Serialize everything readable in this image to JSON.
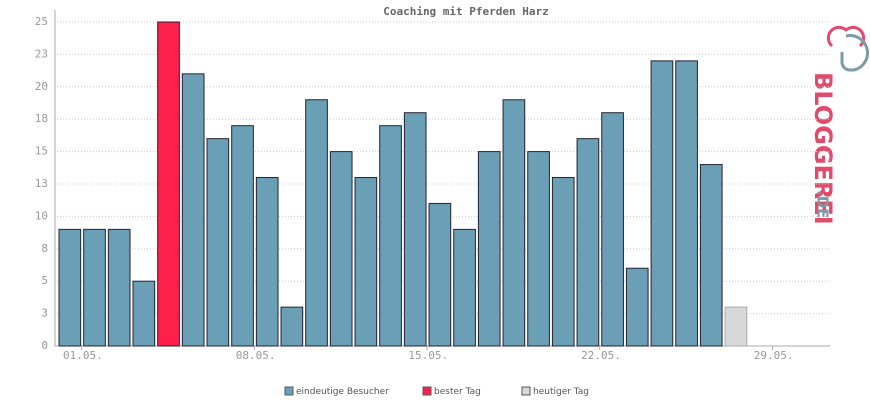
{
  "chart_data": {
    "type": "bar",
    "title": "Coaching mit Pferden Harz",
    "categories": [
      "01.05.",
      null,
      null,
      null,
      null,
      null,
      null,
      "08.05.",
      null,
      null,
      null,
      null,
      null,
      null,
      "15.05.",
      null,
      null,
      null,
      null,
      null,
      null,
      "22.05.",
      null,
      null,
      null,
      null,
      null,
      null,
      "29.05.",
      null,
      null
    ],
    "series": [
      {
        "name": "eindeutige Besucher",
        "color": "#6a9fb5",
        "values": [
          9,
          9,
          9,
          5,
          null,
          21,
          16,
          17,
          13,
          3,
          19,
          15,
          13,
          17,
          18,
          11,
          9,
          15,
          19,
          15,
          13,
          16,
          18,
          6,
          22,
          22,
          14,
          null,
          null,
          null,
          null
        ]
      },
      {
        "name": "bester Tag",
        "color": "#ff1f4b",
        "values": [
          null,
          null,
          null,
          null,
          25,
          null,
          null,
          null,
          null,
          null,
          null,
          null,
          null,
          null,
          null,
          null,
          null,
          null,
          null,
          null,
          null,
          null,
          null,
          null,
          null,
          null,
          null,
          null,
          null,
          null,
          null
        ]
      },
      {
        "name": "heutiger Tag",
        "color": "#d8d8d8",
        "values": [
          null,
          null,
          null,
          null,
          null,
          null,
          null,
          null,
          null,
          null,
          null,
          null,
          null,
          null,
          null,
          null,
          null,
          null,
          null,
          null,
          null,
          null,
          null,
          null,
          null,
          null,
          null,
          3,
          null,
          null,
          null
        ]
      }
    ],
    "ylim": [
      0,
      25
    ],
    "yticks": [
      0,
      {
        "value": 2.5,
        "label": "3"
      },
      5,
      {
        "value": 7.5,
        "label": "8"
      },
      10,
      {
        "value": 12.5,
        "label": "13"
      },
      15,
      {
        "value": 17.5,
        "label": "18"
      },
      20,
      {
        "value": 22.5,
        "label": "23"
      },
      25
    ],
    "grid": true,
    "logo": {
      "main": "BLOGGEREI",
      "suffix": ".DE"
    }
  }
}
